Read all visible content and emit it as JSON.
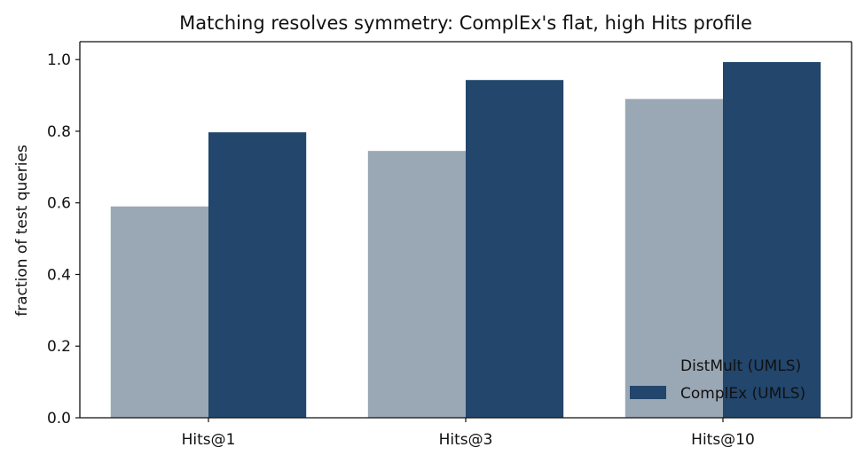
{
  "chart_data": {
    "type": "bar",
    "title": "Matching resolves symmetry: ComplEx's flat, high Hits profile",
    "xlabel": "",
    "ylabel": "fraction of test queries",
    "categories": [
      "Hits@1",
      "Hits@3",
      "Hits@10"
    ],
    "ylim": [
      0,
      1.05
    ],
    "yticks": [
      "0.0",
      "0.2",
      "0.4",
      "0.6",
      "0.8",
      "1.0"
    ],
    "grid": false,
    "legend_position": "lower-right",
    "series": [
      {
        "name": "DistMult (UMLS)",
        "color": "#9aa7b4",
        "values": [
          0.59,
          0.745,
          0.89
        ]
      },
      {
        "name": "ComplEx (UMLS)",
        "color": "#22466c",
        "values": [
          0.797,
          0.943,
          0.993
        ]
      }
    ]
  }
}
